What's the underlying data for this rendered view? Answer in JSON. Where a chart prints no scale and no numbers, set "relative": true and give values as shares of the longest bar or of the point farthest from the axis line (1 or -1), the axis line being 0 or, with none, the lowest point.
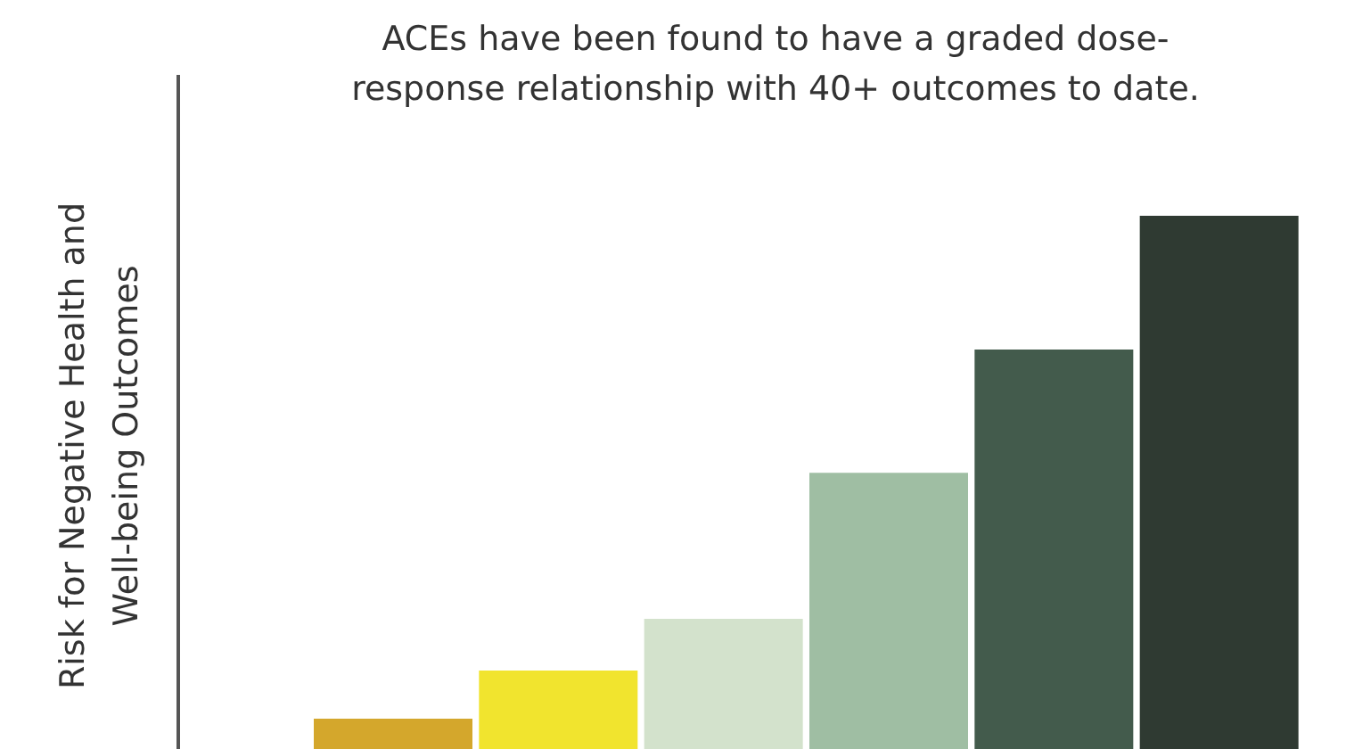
{
  "chart_data": {
    "type": "bar",
    "title": "ACEs have been found to have a graded dose-response relationship with 40+ outcomes to date.",
    "ylabel": "Risk for Negative Health and Well-being Outcomes",
    "relative": true,
    "categories": [
      null,
      null,
      null,
      null,
      null,
      null
    ],
    "values": [
      0.057,
      0.147,
      0.244,
      0.518,
      0.749,
      1
    ],
    "colors": [
      "#d4a72c",
      "#f1e42e",
      "#d3e2cc",
      "#9fbea3",
      "#435b4c",
      "#2f3a32"
    ]
  }
}
